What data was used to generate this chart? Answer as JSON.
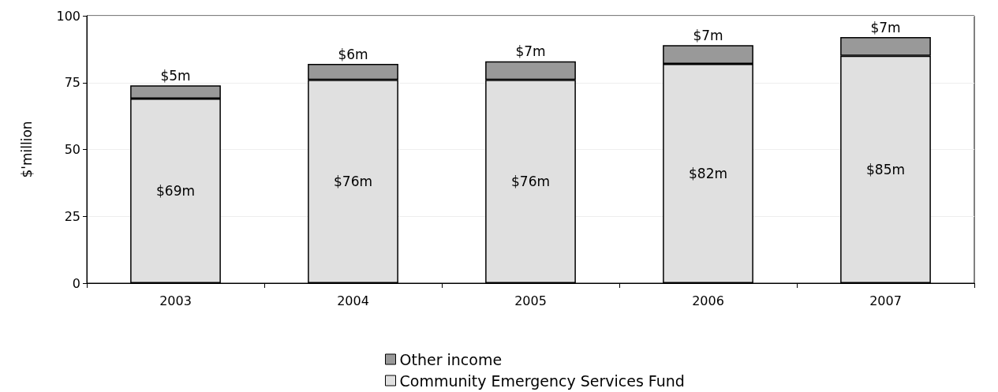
{
  "chart_data": {
    "type": "bar",
    "ylabel": "$'million",
    "categories": [
      "2003",
      "2004",
      "2005",
      "2006",
      "2007"
    ],
    "stacked": true,
    "series": [
      {
        "name": "Community Emergency Services Fund",
        "color": "#e0e0e0",
        "values": [
          69,
          76,
          76,
          82,
          85
        ],
        "value_labels": [
          "$69m",
          "$76m",
          "$76m",
          "$82m",
          "$85m"
        ]
      },
      {
        "name": "Other income",
        "color": "#999999",
        "values": [
          5,
          6,
          7,
          7,
          7
        ],
        "value_labels": [
          "$5m",
          "$6m",
          "$7m",
          "$7m",
          "$7m"
        ]
      }
    ],
    "ylim": [
      0,
      100
    ],
    "yticks": [
      0,
      25,
      50,
      75,
      100
    ],
    "grid": "y",
    "legend": "bottom"
  }
}
